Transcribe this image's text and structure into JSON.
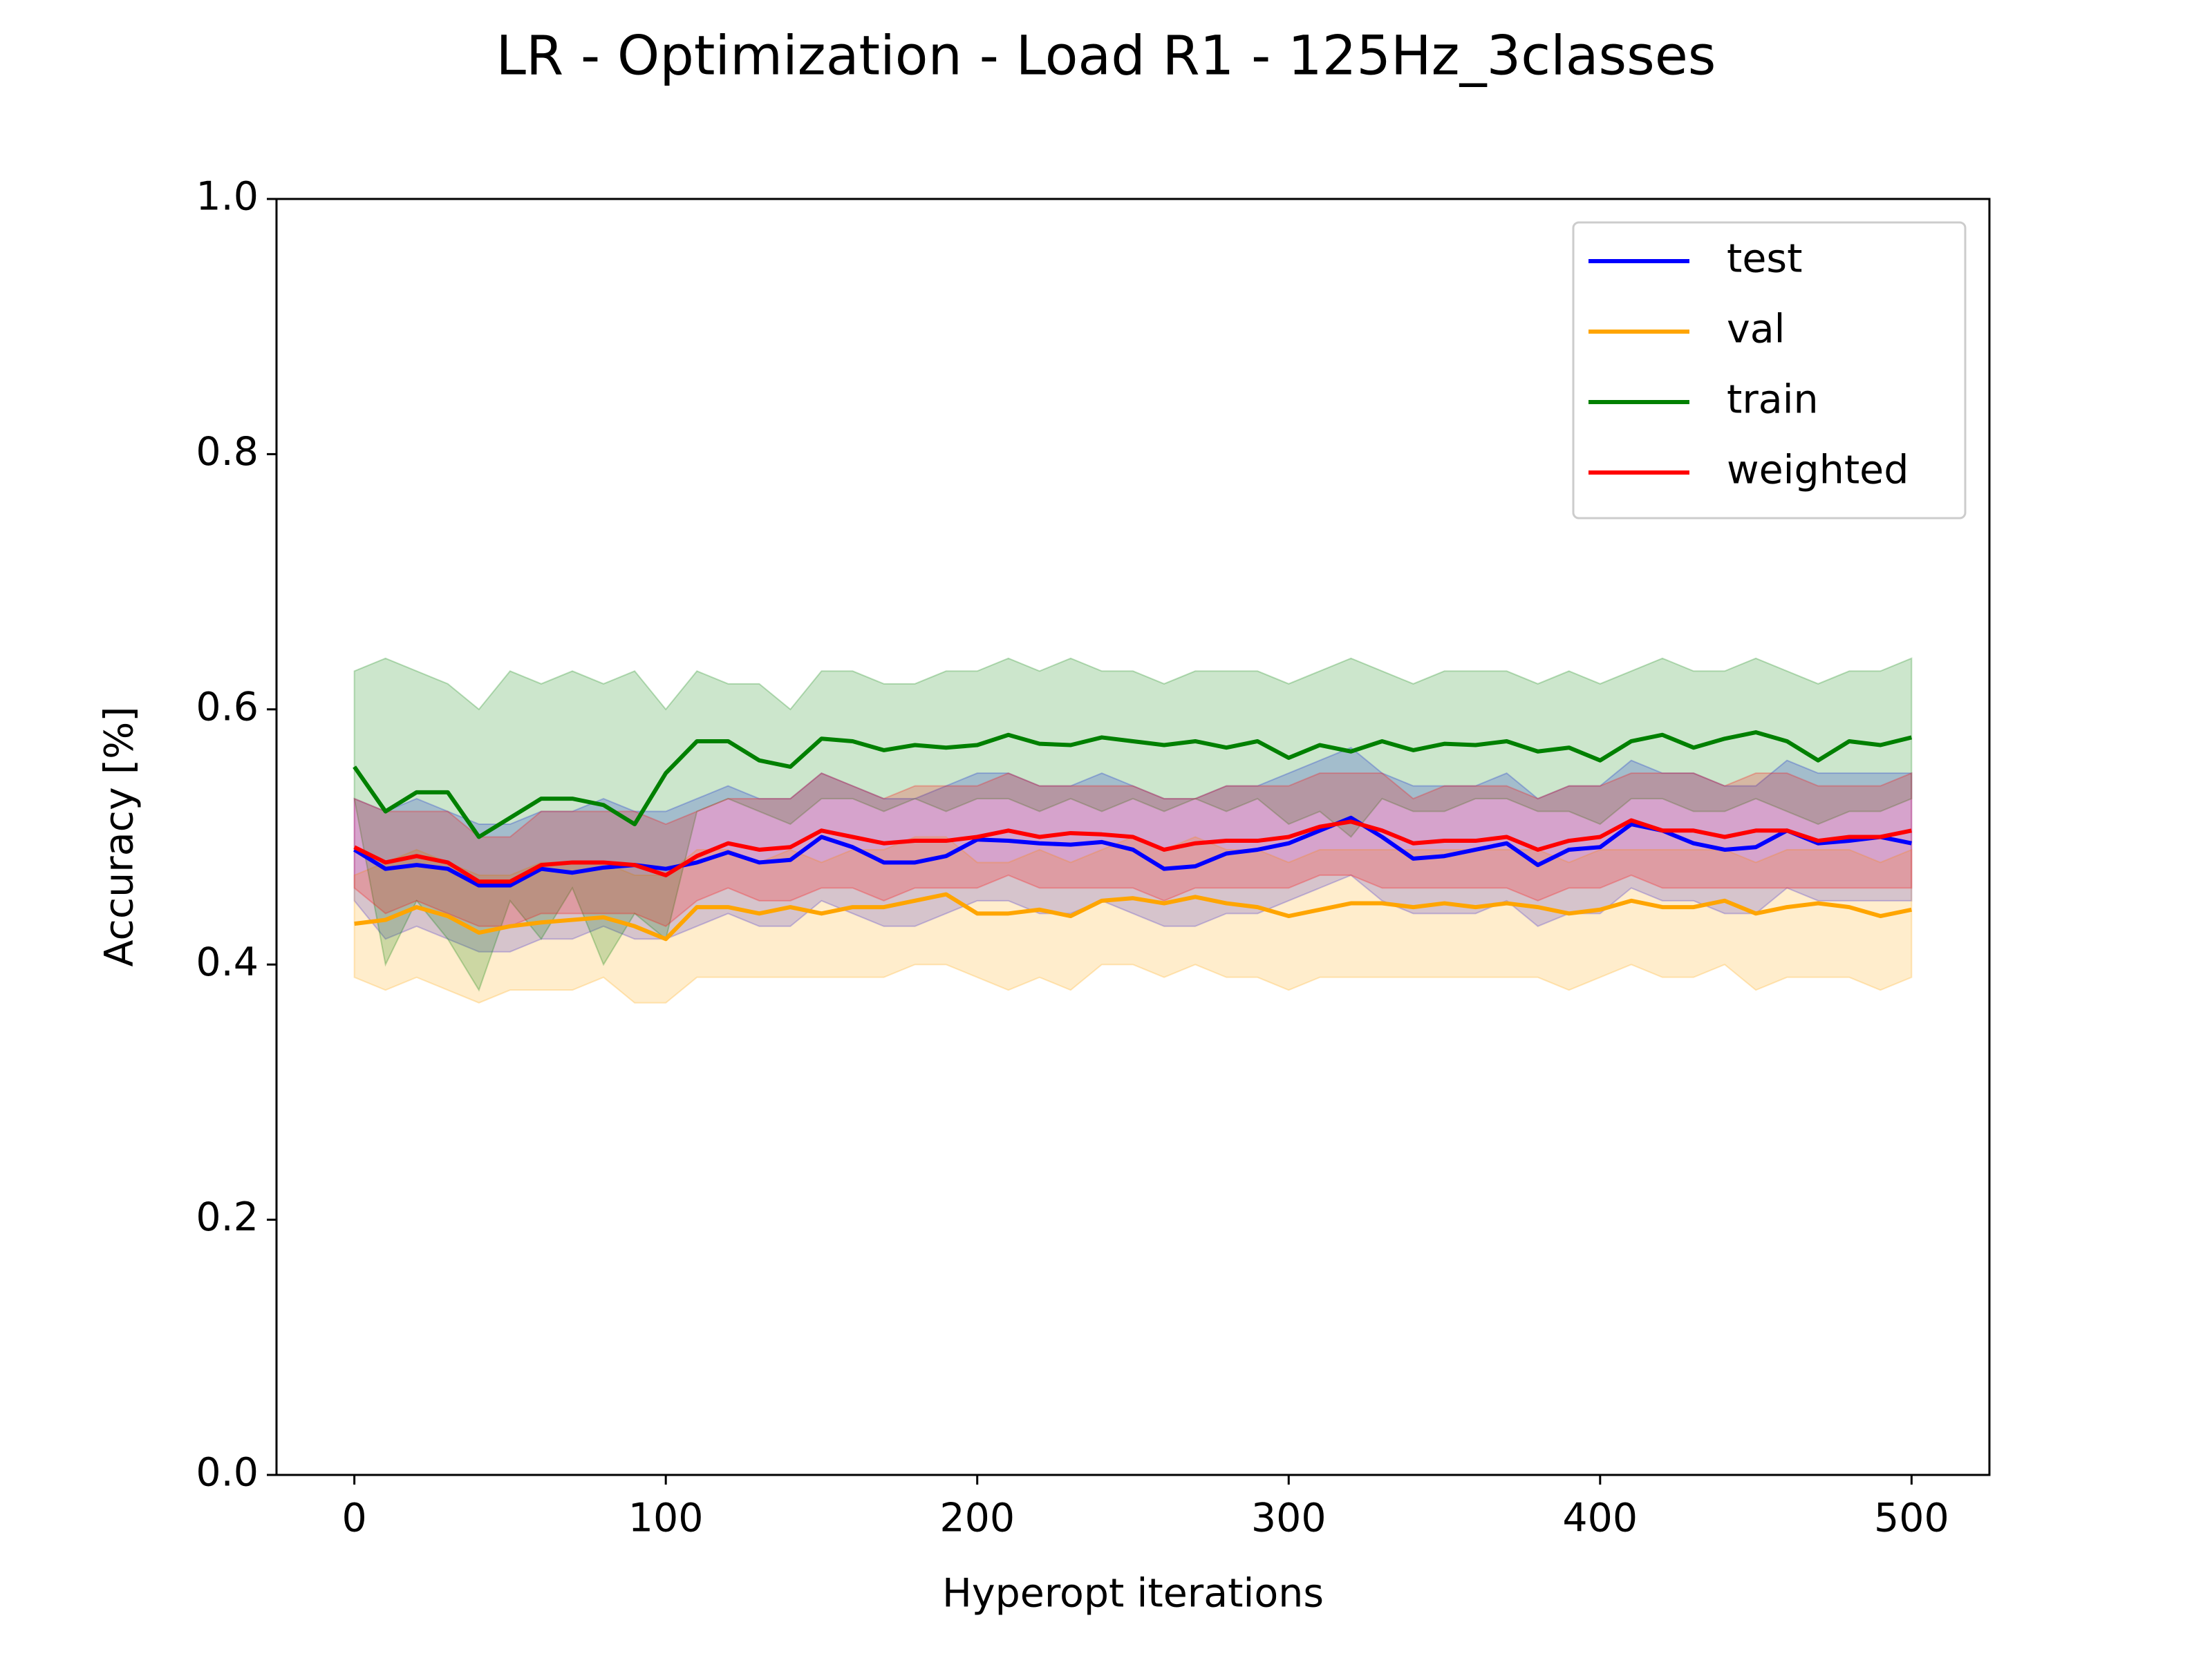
{
  "chart_data": {
    "type": "line",
    "title": "LR - Optimization - Load R1 - 125Hz_3classes",
    "xlabel": "Hyperopt iterations",
    "ylabel": "Accuracy [%]",
    "xlim": [
      -25,
      525
    ],
    "xticks": [
      0,
      100,
      200,
      300,
      400,
      500
    ],
    "ylim": [
      0,
      1
    ],
    "yticks": [
      {
        "value": 0,
        "label": "0.0"
      },
      0.2,
      0.4,
      0.6,
      0.8,
      {
        "value": 1,
        "label": "1.0"
      }
    ],
    "legend": "upper right",
    "x": [
      0,
      10,
      20,
      30,
      40,
      50,
      60,
      70,
      80,
      90,
      100,
      110,
      120,
      130,
      140,
      150,
      160,
      170,
      180,
      190,
      200,
      210,
      220,
      230,
      240,
      250,
      260,
      270,
      280,
      290,
      300,
      310,
      320,
      330,
      340,
      350,
      360,
      370,
      380,
      390,
      400,
      410,
      420,
      430,
      440,
      450,
      460,
      470,
      480,
      490,
      500
    ],
    "series": [
      {
        "name": "test",
        "color": "#0000ff",
        "values": [
          0.49,
          0.475,
          0.478,
          0.475,
          0.462,
          0.462,
          0.475,
          0.472,
          0.476,
          0.478,
          0.475,
          0.48,
          0.488,
          0.48,
          0.482,
          0.5,
          0.492,
          0.48,
          0.48,
          0.485,
          0.498,
          0.497,
          0.495,
          0.494,
          0.496,
          0.49,
          0.475,
          0.477,
          0.487,
          0.49,
          0.495,
          0.505,
          0.515,
          0.5,
          0.483,
          0.485,
          0.49,
          0.495,
          0.478,
          0.49,
          0.492,
          0.51,
          0.505,
          0.495,
          0.49,
          0.492,
          0.505,
          0.495,
          0.497,
          0.5,
          0.495
        ],
        "lower": [
          0.45,
          0.42,
          0.43,
          0.42,
          0.41,
          0.41,
          0.42,
          0.42,
          0.43,
          0.42,
          0.42,
          0.43,
          0.44,
          0.43,
          0.43,
          0.45,
          0.44,
          0.43,
          0.43,
          0.44,
          0.45,
          0.45,
          0.44,
          0.44,
          0.45,
          0.44,
          0.43,
          0.43,
          0.44,
          0.44,
          0.45,
          0.46,
          0.47,
          0.45,
          0.44,
          0.44,
          0.44,
          0.45,
          0.43,
          0.44,
          0.44,
          0.46,
          0.45,
          0.45,
          0.44,
          0.44,
          0.46,
          0.45,
          0.45,
          0.45,
          0.45
        ],
        "upper": [
          0.53,
          0.52,
          0.53,
          0.52,
          0.51,
          0.51,
          0.52,
          0.52,
          0.53,
          0.52,
          0.52,
          0.53,
          0.54,
          0.53,
          0.53,
          0.55,
          0.54,
          0.53,
          0.53,
          0.54,
          0.55,
          0.55,
          0.54,
          0.54,
          0.55,
          0.54,
          0.53,
          0.53,
          0.54,
          0.54,
          0.55,
          0.56,
          0.57,
          0.55,
          0.54,
          0.54,
          0.54,
          0.55,
          0.53,
          0.54,
          0.54,
          0.56,
          0.55,
          0.55,
          0.54,
          0.54,
          0.56,
          0.55,
          0.55,
          0.55,
          0.55
        ]
      },
      {
        "name": "val",
        "color": "#ffa500",
        "values": [
          0.432,
          0.435,
          0.445,
          0.438,
          0.425,
          0.43,
          0.433,
          0.435,
          0.437,
          0.43,
          0.42,
          0.445,
          0.445,
          0.44,
          0.445,
          0.44,
          0.445,
          0.445,
          0.45,
          0.455,
          0.44,
          0.44,
          0.443,
          0.438,
          0.45,
          0.452,
          0.448,
          0.453,
          0.448,
          0.445,
          0.438,
          0.443,
          0.448,
          0.448,
          0.445,
          0.448,
          0.445,
          0.448,
          0.445,
          0.44,
          0.443,
          0.45,
          0.445,
          0.445,
          0.45,
          0.44,
          0.445,
          0.448,
          0.445,
          0.438,
          0.443
        ],
        "lower": [
          0.39,
          0.38,
          0.39,
          0.38,
          0.37,
          0.38,
          0.38,
          0.38,
          0.39,
          0.37,
          0.37,
          0.39,
          0.39,
          0.39,
          0.39,
          0.39,
          0.39,
          0.39,
          0.4,
          0.4,
          0.39,
          0.38,
          0.39,
          0.38,
          0.4,
          0.4,
          0.39,
          0.4,
          0.39,
          0.39,
          0.38,
          0.39,
          0.39,
          0.39,
          0.39,
          0.39,
          0.39,
          0.39,
          0.39,
          0.38,
          0.39,
          0.4,
          0.39,
          0.39,
          0.4,
          0.38,
          0.39,
          0.39,
          0.39,
          0.38,
          0.39
        ],
        "upper": [
          0.47,
          0.48,
          0.49,
          0.48,
          0.47,
          0.47,
          0.48,
          0.48,
          0.48,
          0.47,
          0.47,
          0.49,
          0.49,
          0.48,
          0.49,
          0.48,
          0.49,
          0.49,
          0.5,
          0.5,
          0.48,
          0.48,
          0.49,
          0.48,
          0.49,
          0.5,
          0.49,
          0.5,
          0.49,
          0.49,
          0.48,
          0.49,
          0.49,
          0.49,
          0.49,
          0.49,
          0.49,
          0.49,
          0.49,
          0.48,
          0.49,
          0.49,
          0.49,
          0.49,
          0.49,
          0.48,
          0.49,
          0.49,
          0.49,
          0.48,
          0.49
        ]
      },
      {
        "name": "train",
        "color": "#008000",
        "values": [
          0.555,
          0.52,
          0.535,
          0.535,
          0.5,
          0.515,
          0.53,
          0.53,
          0.525,
          0.51,
          0.55,
          0.575,
          0.575,
          0.56,
          0.555,
          0.577,
          0.575,
          0.568,
          0.572,
          0.57,
          0.572,
          0.58,
          0.573,
          0.572,
          0.578,
          0.575,
          0.572,
          0.575,
          0.57,
          0.575,
          0.562,
          0.572,
          0.567,
          0.575,
          0.568,
          0.573,
          0.572,
          0.575,
          0.567,
          0.57,
          0.56,
          0.575,
          0.58,
          0.57,
          0.577,
          0.582,
          0.575,
          0.56,
          0.575,
          0.572,
          0.578
        ],
        "lower": [
          0.53,
          0.4,
          0.45,
          0.42,
          0.38,
          0.45,
          0.42,
          0.46,
          0.4,
          0.44,
          0.42,
          0.52,
          0.53,
          0.52,
          0.51,
          0.53,
          0.53,
          0.52,
          0.53,
          0.52,
          0.53,
          0.53,
          0.52,
          0.53,
          0.52,
          0.53,
          0.52,
          0.53,
          0.52,
          0.53,
          0.51,
          0.52,
          0.5,
          0.53,
          0.52,
          0.52,
          0.53,
          0.53,
          0.52,
          0.52,
          0.51,
          0.53,
          0.53,
          0.52,
          0.52,
          0.53,
          0.52,
          0.51,
          0.52,
          0.52,
          0.53
        ],
        "upper": [
          0.63,
          0.64,
          0.63,
          0.62,
          0.6,
          0.63,
          0.62,
          0.63,
          0.62,
          0.63,
          0.6,
          0.63,
          0.62,
          0.62,
          0.6,
          0.63,
          0.63,
          0.62,
          0.62,
          0.63,
          0.63,
          0.64,
          0.63,
          0.64,
          0.63,
          0.63,
          0.62,
          0.63,
          0.63,
          0.63,
          0.62,
          0.63,
          0.64,
          0.63,
          0.62,
          0.63,
          0.63,
          0.63,
          0.62,
          0.63,
          0.62,
          0.63,
          0.64,
          0.63,
          0.63,
          0.64,
          0.63,
          0.62,
          0.63,
          0.63,
          0.64
        ]
      },
      {
        "name": "weighted",
        "color": "#ff0000",
        "values": [
          0.492,
          0.48,
          0.485,
          0.48,
          0.465,
          0.465,
          0.478,
          0.48,
          0.48,
          0.478,
          0.47,
          0.485,
          0.495,
          0.49,
          0.492,
          0.505,
          0.5,
          0.495,
          0.497,
          0.497,
          0.5,
          0.505,
          0.5,
          0.503,
          0.502,
          0.5,
          0.49,
          0.495,
          0.497,
          0.497,
          0.5,
          0.508,
          0.512,
          0.505,
          0.495,
          0.497,
          0.497,
          0.5,
          0.49,
          0.497,
          0.5,
          0.513,
          0.505,
          0.505,
          0.5,
          0.505,
          0.505,
          0.497,
          0.5,
          0.5,
          0.505
        ],
        "lower": [
          0.46,
          0.44,
          0.45,
          0.44,
          0.43,
          0.43,
          0.44,
          0.44,
          0.44,
          0.44,
          0.43,
          0.45,
          0.46,
          0.45,
          0.45,
          0.46,
          0.46,
          0.45,
          0.46,
          0.46,
          0.46,
          0.47,
          0.46,
          0.46,
          0.46,
          0.46,
          0.45,
          0.46,
          0.46,
          0.46,
          0.46,
          0.47,
          0.47,
          0.46,
          0.46,
          0.46,
          0.46,
          0.46,
          0.45,
          0.46,
          0.46,
          0.47,
          0.46,
          0.46,
          0.46,
          0.46,
          0.46,
          0.46,
          0.46,
          0.46,
          0.46
        ],
        "upper": [
          0.53,
          0.52,
          0.52,
          0.52,
          0.5,
          0.5,
          0.52,
          0.52,
          0.52,
          0.52,
          0.51,
          0.52,
          0.53,
          0.53,
          0.53,
          0.55,
          0.54,
          0.53,
          0.54,
          0.54,
          0.54,
          0.55,
          0.54,
          0.54,
          0.54,
          0.54,
          0.53,
          0.53,
          0.54,
          0.54,
          0.54,
          0.55,
          0.55,
          0.55,
          0.53,
          0.54,
          0.54,
          0.54,
          0.53,
          0.54,
          0.54,
          0.55,
          0.55,
          0.55,
          0.54,
          0.55,
          0.55,
          0.54,
          0.54,
          0.54,
          0.55
        ]
      }
    ]
  }
}
